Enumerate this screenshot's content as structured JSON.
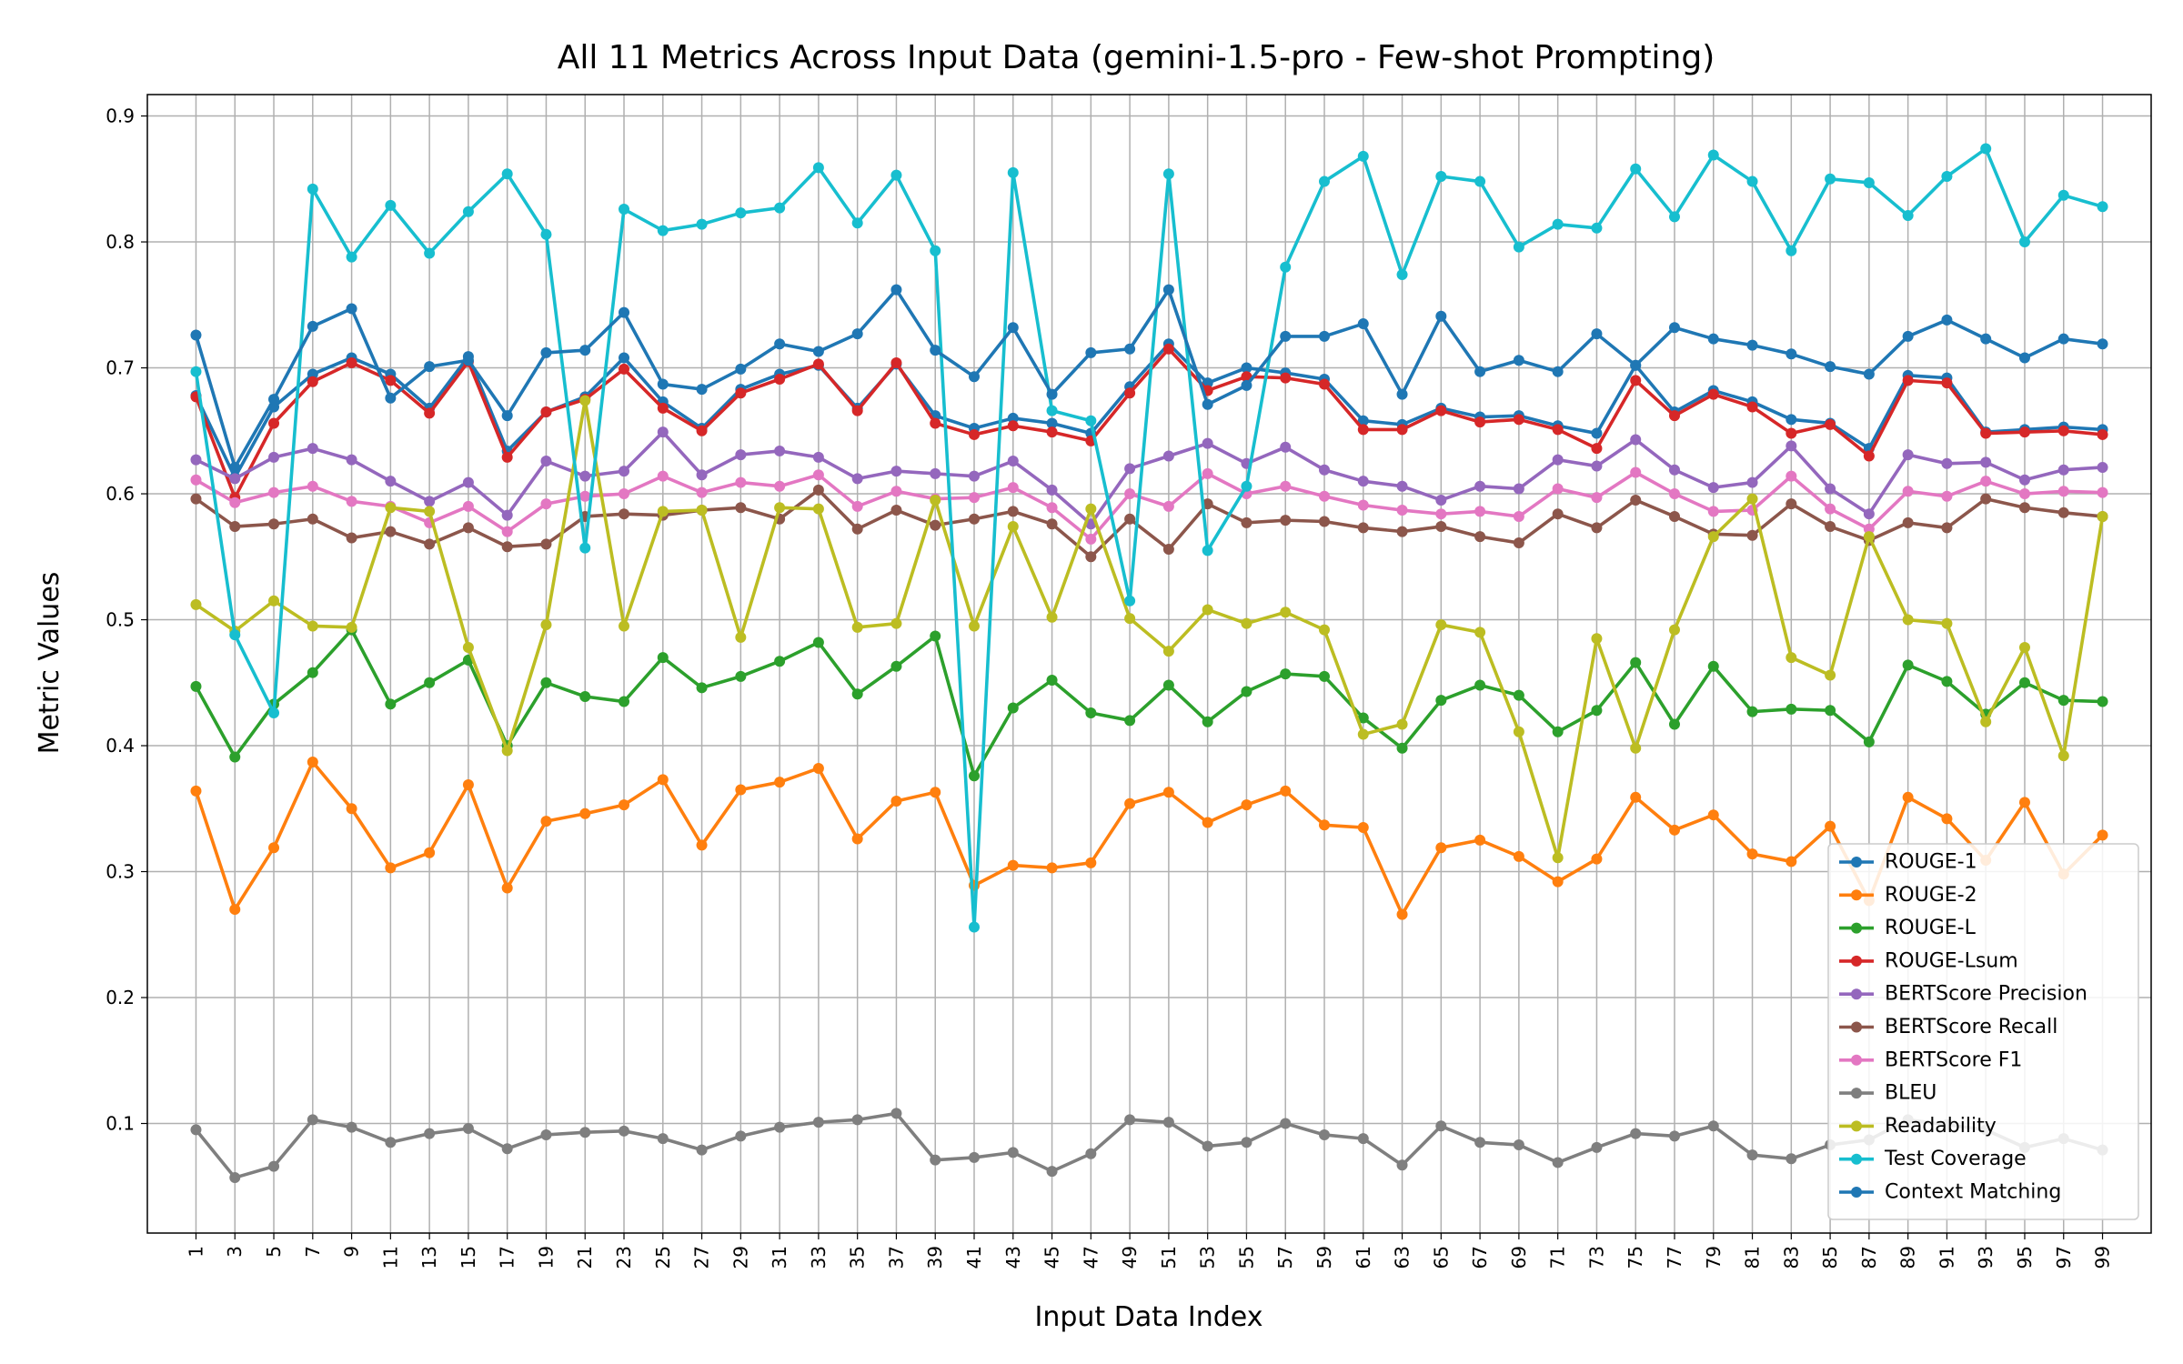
{
  "chart_data": {
    "type": "line",
    "title": "All 11 Metrics Across Input Data (gemini-1.5-pro - Few-shot Prompting)",
    "xlabel": "Input Data Index",
    "ylabel": "Metric Values",
    "x": [
      1,
      3,
      5,
      7,
      9,
      11,
      13,
      15,
      17,
      19,
      21,
      23,
      25,
      27,
      29,
      31,
      33,
      35,
      37,
      39,
      41,
      43,
      45,
      47,
      49,
      51,
      53,
      55,
      57,
      59,
      61,
      63,
      65,
      67,
      69,
      71,
      73,
      75,
      77,
      79,
      81,
      83,
      85,
      87,
      89,
      91,
      93,
      95,
      97,
      99
    ],
    "xticks": [
      "1",
      "3",
      "5",
      "7",
      "9",
      "11",
      "13",
      "15",
      "17",
      "19",
      "21",
      "23",
      "25",
      "27",
      "29",
      "31",
      "33",
      "35",
      "37",
      "39",
      "41",
      "43",
      "45",
      "47",
      "49",
      "51",
      "53",
      "55",
      "57",
      "59",
      "61",
      "63",
      "65",
      "67",
      "69",
      "71",
      "73",
      "75",
      "77",
      "79",
      "81",
      "83",
      "85",
      "87",
      "89",
      "91",
      "93",
      "95",
      "97",
      "99"
    ],
    "yticks": [
      "0.1",
      "0.2",
      "0.3",
      "0.4",
      "0.5",
      "0.6",
      "0.7",
      "0.8",
      "0.9"
    ],
    "xlim": [
      -1.5,
      101.5
    ],
    "ylim": [
      0.013,
      0.917
    ],
    "grid": true,
    "legend_position": "lower-right",
    "series": [
      {
        "name": "ROUGE-1",
        "color": "#1f77b4",
        "values": [
          0.678,
          0.613,
          0.669,
          0.695,
          0.708,
          0.695,
          0.668,
          0.709,
          0.634,
          0.665,
          0.677,
          0.708,
          0.673,
          0.652,
          0.683,
          0.695,
          0.702,
          0.668,
          0.703,
          0.662,
          0.652,
          0.66,
          0.656,
          0.648,
          0.685,
          0.719,
          0.688,
          0.7,
          0.696,
          0.691,
          0.658,
          0.655,
          0.668,
          0.661,
          0.662,
          0.654,
          0.648,
          0.702,
          0.665,
          0.682,
          0.673,
          0.659,
          0.656,
          0.636,
          0.694,
          0.692,
          0.649,
          0.651,
          0.653,
          0.651
        ]
      },
      {
        "name": "ROUGE-2",
        "color": "#ff7f0e",
        "values": [
          0.364,
          0.27,
          0.319,
          0.387,
          0.35,
          0.303,
          0.315,
          0.369,
          0.287,
          0.34,
          0.346,
          0.353,
          0.373,
          0.321,
          0.365,
          0.371,
          0.382,
          0.326,
          0.356,
          0.363,
          0.289,
          0.305,
          0.303,
          0.307,
          0.354,
          0.363,
          0.339,
          0.353,
          0.364,
          0.337,
          0.335,
          0.266,
          0.319,
          0.325,
          0.312,
          0.292,
          0.31,
          0.359,
          0.333,
          0.345,
          0.314,
          0.308,
          0.336,
          0.277,
          0.359,
          0.342,
          0.309,
          0.355,
          0.298,
          0.329
        ]
      },
      {
        "name": "ROUGE-L",
        "color": "#2ca02c",
        "values": [
          0.447,
          0.391,
          0.433,
          0.458,
          0.492,
          0.433,
          0.45,
          0.468,
          0.4,
          0.45,
          0.439,
          0.435,
          0.47,
          0.446,
          0.455,
          0.467,
          0.482,
          0.441,
          0.463,
          0.487,
          0.376,
          0.43,
          0.452,
          0.426,
          0.42,
          0.448,
          0.419,
          0.443,
          0.457,
          0.455,
          0.422,
          0.398,
          0.436,
          0.448,
          0.44,
          0.411,
          0.428,
          0.466,
          0.417,
          0.463,
          0.427,
          0.429,
          0.428,
          0.403,
          0.464,
          0.451,
          0.425,
          0.45,
          0.436,
          0.435
        ]
      },
      {
        "name": "ROUGE-Lsum",
        "color": "#d62728",
        "values": [
          0.677,
          0.597,
          0.656,
          0.689,
          0.704,
          0.69,
          0.664,
          0.705,
          0.629,
          0.665,
          0.675,
          0.699,
          0.668,
          0.65,
          0.68,
          0.691,
          0.703,
          0.666,
          0.704,
          0.656,
          0.647,
          0.654,
          0.649,
          0.642,
          0.68,
          0.715,
          0.682,
          0.693,
          0.692,
          0.687,
          0.651,
          0.651,
          0.666,
          0.657,
          0.659,
          0.651,
          0.636,
          0.69,
          0.662,
          0.679,
          0.669,
          0.648,
          0.655,
          0.63,
          0.69,
          0.688,
          0.648,
          0.649,
          0.65,
          0.647
        ]
      },
      {
        "name": "BERTScore Precision",
        "color": "#9467bd",
        "values": [
          0.627,
          0.612,
          0.629,
          0.636,
          0.627,
          0.61,
          0.594,
          0.609,
          0.583,
          0.626,
          0.614,
          0.618,
          0.649,
          0.615,
          0.631,
          0.634,
          0.629,
          0.612,
          0.618,
          0.616,
          0.614,
          0.626,
          0.603,
          0.576,
          0.62,
          0.63,
          0.64,
          0.624,
          0.637,
          0.619,
          0.61,
          0.606,
          0.595,
          0.606,
          0.604,
          0.627,
          0.622,
          0.643,
          0.619,
          0.605,
          0.609,
          0.638,
          0.604,
          0.584,
          0.631,
          0.624,
          0.625,
          0.611,
          0.619,
          0.621
        ]
      },
      {
        "name": "BERTScore Recall",
        "color": "#8c564b",
        "values": [
          0.596,
          0.574,
          0.576,
          0.58,
          0.565,
          0.57,
          0.56,
          0.573,
          0.558,
          0.56,
          0.582,
          0.584,
          0.583,
          0.587,
          0.589,
          0.58,
          0.603,
          0.572,
          0.587,
          0.575,
          0.58,
          0.586,
          0.576,
          0.55,
          0.58,
          0.556,
          0.592,
          0.577,
          0.579,
          0.578,
          0.573,
          0.57,
          0.574,
          0.566,
          0.561,
          0.584,
          0.573,
          0.595,
          0.582,
          0.568,
          0.567,
          0.592,
          0.574,
          0.563,
          0.577,
          0.573,
          0.596,
          0.589,
          0.585,
          0.582
        ]
      },
      {
        "name": "BERTScore F1",
        "color": "#e377c2",
        "values": [
          0.611,
          0.593,
          0.601,
          0.606,
          0.594,
          0.59,
          0.577,
          0.59,
          0.57,
          0.592,
          0.598,
          0.6,
          0.614,
          0.601,
          0.609,
          0.606,
          0.615,
          0.59,
          0.602,
          0.596,
          0.597,
          0.605,
          0.589,
          0.564,
          0.6,
          0.59,
          0.616,
          0.6,
          0.606,
          0.598,
          0.591,
          0.587,
          0.584,
          0.586,
          0.582,
          0.604,
          0.597,
          0.617,
          0.6,
          0.586,
          0.587,
          0.614,
          0.588,
          0.572,
          0.602,
          0.598,
          0.61,
          0.6,
          0.602,
          0.601
        ]
      },
      {
        "name": "BLEU",
        "color": "#7f7f7f",
        "values": [
          0.095,
          0.057,
          0.066,
          0.103,
          0.097,
          0.085,
          0.092,
          0.096,
          0.08,
          0.091,
          0.093,
          0.094,
          0.088,
          0.079,
          0.09,
          0.097,
          0.101,
          0.103,
          0.108,
          0.071,
          0.073,
          0.077,
          0.062,
          0.076,
          0.103,
          0.101,
          0.082,
          0.085,
          0.1,
          0.091,
          0.088,
          0.067,
          0.098,
          0.085,
          0.083,
          0.069,
          0.081,
          0.092,
          0.09,
          0.098,
          0.075,
          0.072,
          0.083,
          0.087,
          0.103,
          0.099,
          0.095,
          0.081,
          0.088,
          0.079
        ]
      },
      {
        "name": "Readability",
        "color": "#bcbd22",
        "values": [
          0.512,
          0.491,
          0.515,
          0.495,
          0.494,
          0.589,
          0.586,
          0.478,
          0.396,
          0.496,
          0.674,
          0.495,
          0.586,
          0.587,
          0.486,
          0.589,
          0.588,
          0.494,
          0.497,
          0.595,
          0.495,
          0.574,
          0.502,
          0.588,
          0.501,
          0.475,
          0.508,
          0.497,
          0.506,
          0.492,
          0.409,
          0.417,
          0.496,
          0.49,
          0.411,
          0.311,
          0.485,
          0.398,
          0.492,
          0.566,
          0.596,
          0.47,
          0.456,
          0.566,
          0.5,
          0.497,
          0.419,
          0.478,
          0.392,
          0.582
        ]
      },
      {
        "name": "Test Coverage",
        "color": "#17becf",
        "values": [
          0.697,
          0.488,
          0.426,
          0.842,
          0.788,
          0.829,
          0.791,
          0.824,
          0.854,
          0.806,
          0.557,
          0.826,
          0.809,
          0.814,
          0.823,
          0.827,
          0.859,
          0.815,
          0.853,
          0.793,
          0.256,
          0.855,
          0.666,
          0.658,
          0.515,
          0.854,
          0.555,
          0.606,
          0.78,
          0.848,
          0.868,
          0.774,
          0.852,
          0.848,
          0.796,
          0.814,
          0.811,
          0.858,
          0.82,
          0.869,
          0.848,
          0.793,
          0.85,
          0.847,
          0.821,
          0.852,
          0.874,
          0.8,
          0.837,
          0.828
        ]
      },
      {
        "name": "Context Matching",
        "color": "#1f77b4",
        "values": [
          0.726,
          0.621,
          0.675,
          0.733,
          0.747,
          0.676,
          0.701,
          0.706,
          0.662,
          0.712,
          0.714,
          0.744,
          0.687,
          0.683,
          0.699,
          0.719,
          0.713,
          0.727,
          0.762,
          0.714,
          0.693,
          0.732,
          0.679,
          0.712,
          0.715,
          0.762,
          0.671,
          0.686,
          0.725,
          0.725,
          0.735,
          0.679,
          0.741,
          0.697,
          0.706,
          0.697,
          0.727,
          0.702,
          0.732,
          0.723,
          0.718,
          0.711,
          0.701,
          0.695,
          0.725,
          0.738,
          0.723,
          0.708,
          0.723,
          0.719
        ]
      }
    ]
  }
}
